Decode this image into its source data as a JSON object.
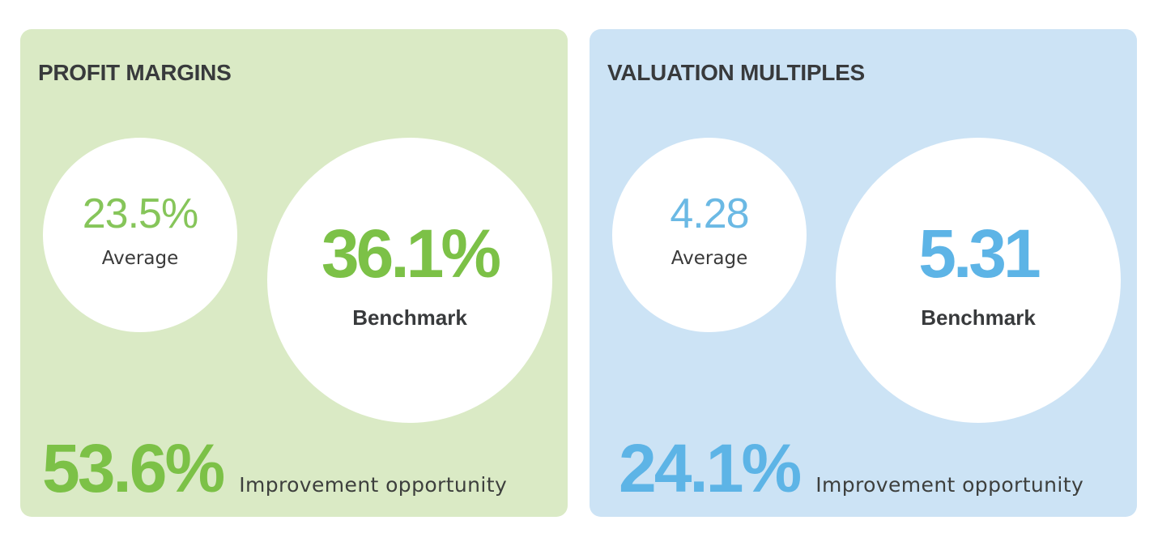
{
  "colors": {
    "green_accent": "#7cc147",
    "green_card_bg": "#daeac5",
    "blue_accent": "#5db4e6",
    "blue_card_bg": "#cce3f5",
    "text_dark": "#383a3c",
    "circle_bg": "#ffffff"
  },
  "cards": [
    {
      "title": "PROFIT MARGINS",
      "average": {
        "value": "23.5%",
        "label": "Average"
      },
      "benchmark": {
        "value": "36.1%",
        "label": "Benchmark"
      },
      "improvement": {
        "value": "53.6%",
        "label": "Improvement opportunity"
      }
    },
    {
      "title": "VALUATION MULTIPLES",
      "average": {
        "value": "4.28",
        "label": "Average"
      },
      "benchmark": {
        "value": "5.31",
        "label": "Benchmark"
      },
      "improvement": {
        "value": "24.1%",
        "label": "Improvement opportunity"
      }
    }
  ]
}
